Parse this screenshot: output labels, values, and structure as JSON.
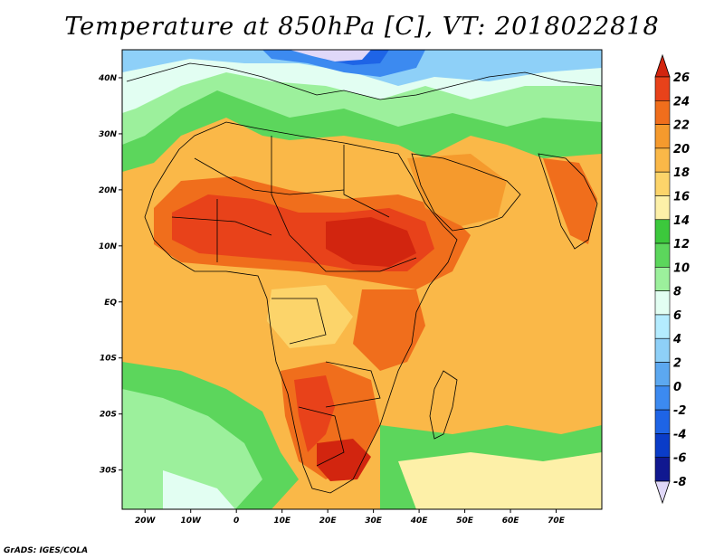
{
  "title": "Temperature at 850hPa [C], VT: 2018022818",
  "footer": "GrADS: IGES/COLA",
  "map": {
    "region": "Africa",
    "projection": "latlon",
    "lon_range": [
      -25,
      80
    ],
    "lat_range": [
      -37,
      45
    ],
    "lat_ticks": [
      {
        "value": 40,
        "label": "40N"
      },
      {
        "value": 30,
        "label": "30N"
      },
      {
        "value": 20,
        "label": "20N"
      },
      {
        "value": 10,
        "label": "10N"
      },
      {
        "value": 0,
        "label": "EQ"
      },
      {
        "value": -10,
        "label": "10S"
      },
      {
        "value": -20,
        "label": "20S"
      },
      {
        "value": -30,
        "label": "30S"
      }
    ],
    "lon_ticks": [
      {
        "value": -20,
        "label": "20W"
      },
      {
        "value": -10,
        "label": "10W"
      },
      {
        "value": 0,
        "label": "0"
      },
      {
        "value": 10,
        "label": "10E"
      },
      {
        "value": 20,
        "label": "20E"
      },
      {
        "value": 30,
        "label": "30E"
      },
      {
        "value": 40,
        "label": "40E"
      },
      {
        "value": 50,
        "label": "50E"
      },
      {
        "value": 60,
        "label": "60E"
      },
      {
        "value": 70,
        "label": "70E"
      }
    ]
  },
  "colorbar": {
    "levels": [
      {
        "label": "26",
        "color": "#d2250f"
      },
      {
        "label": "24",
        "color": "#e8421a"
      },
      {
        "label": "22",
        "color": "#f06e1c"
      },
      {
        "label": "20",
        "color": "#f59a2d"
      },
      {
        "label": "18",
        "color": "#fab848"
      },
      {
        "label": "16",
        "color": "#fcd46a"
      },
      {
        "label": "14",
        "color": "#fdf0a8"
      },
      {
        "label": "12",
        "color": "#3cc83c"
      },
      {
        "label": "10",
        "color": "#5cd65c"
      },
      {
        "label": "8",
        "color": "#9cf09c"
      },
      {
        "label": "6",
        "color": "#e2fef2"
      },
      {
        "label": "4",
        "color": "#b4ecff"
      },
      {
        "label": "2",
        "color": "#8ed0f8"
      },
      {
        "label": "0",
        "color": "#5ca8f0"
      },
      {
        "label": "-2",
        "color": "#3c8af0"
      },
      {
        "label": "-4",
        "color": "#1e64e6"
      },
      {
        "label": "-6",
        "color": "#0a3cc8"
      },
      {
        "label": "-8",
        "color": "#101890"
      }
    ],
    "top_triangle_color": "#d2250f",
    "bottom_triangle_color": "#e0d8f8"
  }
}
